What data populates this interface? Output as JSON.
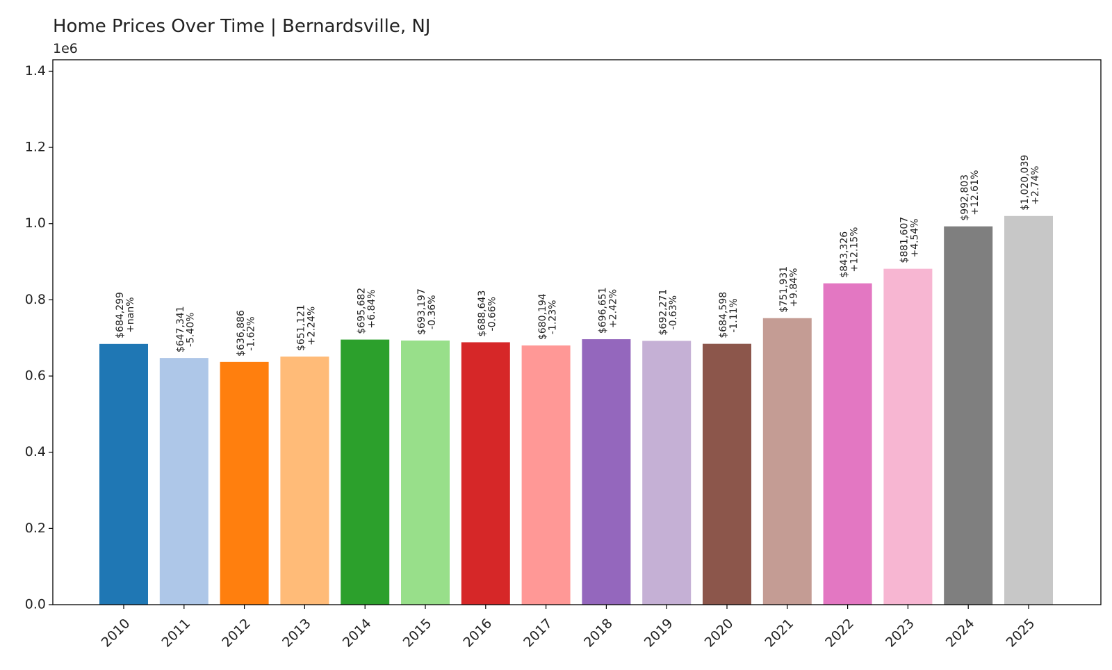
{
  "chart_data": {
    "type": "bar",
    "title": "Home Prices Over Time | Bernardsville, NJ",
    "scale_note": "1e6",
    "xlabel": "",
    "ylabel": "",
    "ylim": [
      0,
      1.43
    ],
    "yticks": [
      0.0,
      0.2,
      0.4,
      0.6,
      0.8,
      1.0,
      1.2,
      1.4
    ],
    "ytick_labels": [
      "0.0",
      "0.2",
      "0.4",
      "0.6",
      "0.8",
      "1.0",
      "1.2",
      "1.4"
    ],
    "grid": false,
    "legend": "none",
    "categories": [
      "2010",
      "2011",
      "2012",
      "2013",
      "2014",
      "2015",
      "2016",
      "2017",
      "2018",
      "2019",
      "2020",
      "2021",
      "2022",
      "2023",
      "2024",
      "2025"
    ],
    "values": [
      684299,
      647341,
      636886,
      651121,
      695682,
      693197,
      688643,
      680194,
      696651,
      692271,
      684598,
      751931,
      843326,
      881607,
      992803,
      1020039
    ],
    "value_labels": [
      "$684,299",
      "$647,341",
      "$636,886",
      "$651,121",
      "$695,682",
      "$693,197",
      "$688,643",
      "$680,194",
      "$696,651",
      "$692,271",
      "$684,598",
      "$751,931",
      "$843,326",
      "$881,607",
      "$992,803",
      "$1,020,039"
    ],
    "change_labels": [
      "+nan%",
      "-5.40%",
      "-1.62%",
      "+2.24%",
      "+6.84%",
      "-0.36%",
      "-0.66%",
      "-1.23%",
      "+2.42%",
      "-0.63%",
      "-1.11%",
      "+9.84%",
      "+12.15%",
      "+4.54%",
      "+12.61%",
      "+2.74%"
    ],
    "colors": [
      "#1f77b4",
      "#aec7e8",
      "#ff7f0e",
      "#ffbb78",
      "#2ca02c",
      "#98df8a",
      "#d62728",
      "#ff9896",
      "#9467bd",
      "#c5b0d5",
      "#8c564b",
      "#c49c94",
      "#e377c2",
      "#f7b6d2",
      "#7f7f7f",
      "#c7c7c7"
    ]
  }
}
